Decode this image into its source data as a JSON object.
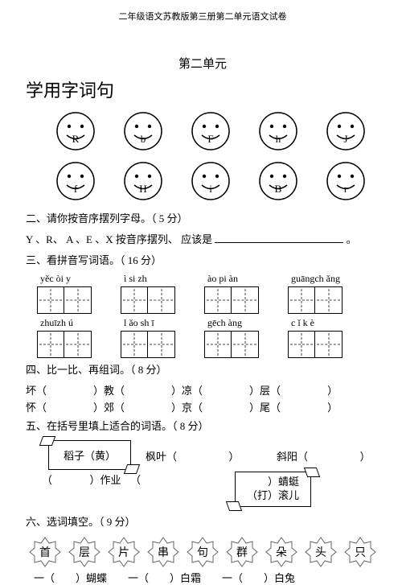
{
  "header": "二年级语文苏教版第三册第二单元语文试卷",
  "unit": "第二单元",
  "heading": "学用字词句",
  "faces_row1": [
    "R",
    "b",
    "F",
    "h",
    "J"
  ],
  "faces_row2": [
    "f",
    "H",
    "i",
    "B",
    "r"
  ],
  "q2": "二、请你按音序摆列字母。（ 5 分）",
  "q2_line": "Y 、R、 A 、E 、X 按音序摆列、 应该是",
  "q2_end": "。",
  "q3": "三、看拼音写词语。（ 16 分）",
  "pinyin_r1": [
    "yěc òi y",
    "ì si zh",
    "ào pi àn",
    "guāngch ǎng"
  ],
  "pinyin_r2": [
    "zhuīzh ú",
    "l ǎo sh ī",
    "gēch àng",
    "c ǐ k è"
  ],
  "q4": "四、比一比、再组词。（ 8 分）",
  "compare": [
    [
      "坏（",
      "）教（",
      "）凉（",
      "）层（",
      "）"
    ],
    [
      "怀（",
      "）郊（",
      "）京（",
      "）尾（",
      "）"
    ]
  ],
  "q5": "五、在括号里填上适合的词语。（ 8 分）",
  "ribbon1": "稻子（黄）",
  "ribbon2_l1": "）蜻蜓",
  "ribbon2_l2": "（打）滚儿",
  "fill_top": [
    "枫叶（",
    "）",
    "斜阳（",
    "）"
  ],
  "fill_bot": [
    "（",
    "）作业",
    "（"
  ],
  "q6": "六、选词填空。（ 9 分）",
  "stars": [
    "首",
    "层",
    "片",
    "串",
    "句",
    "群",
    "朵",
    "头",
    "只"
  ],
  "answers": "一（　　）蝴蝶　　一（　　）白霜　　一（　　）白兔"
}
